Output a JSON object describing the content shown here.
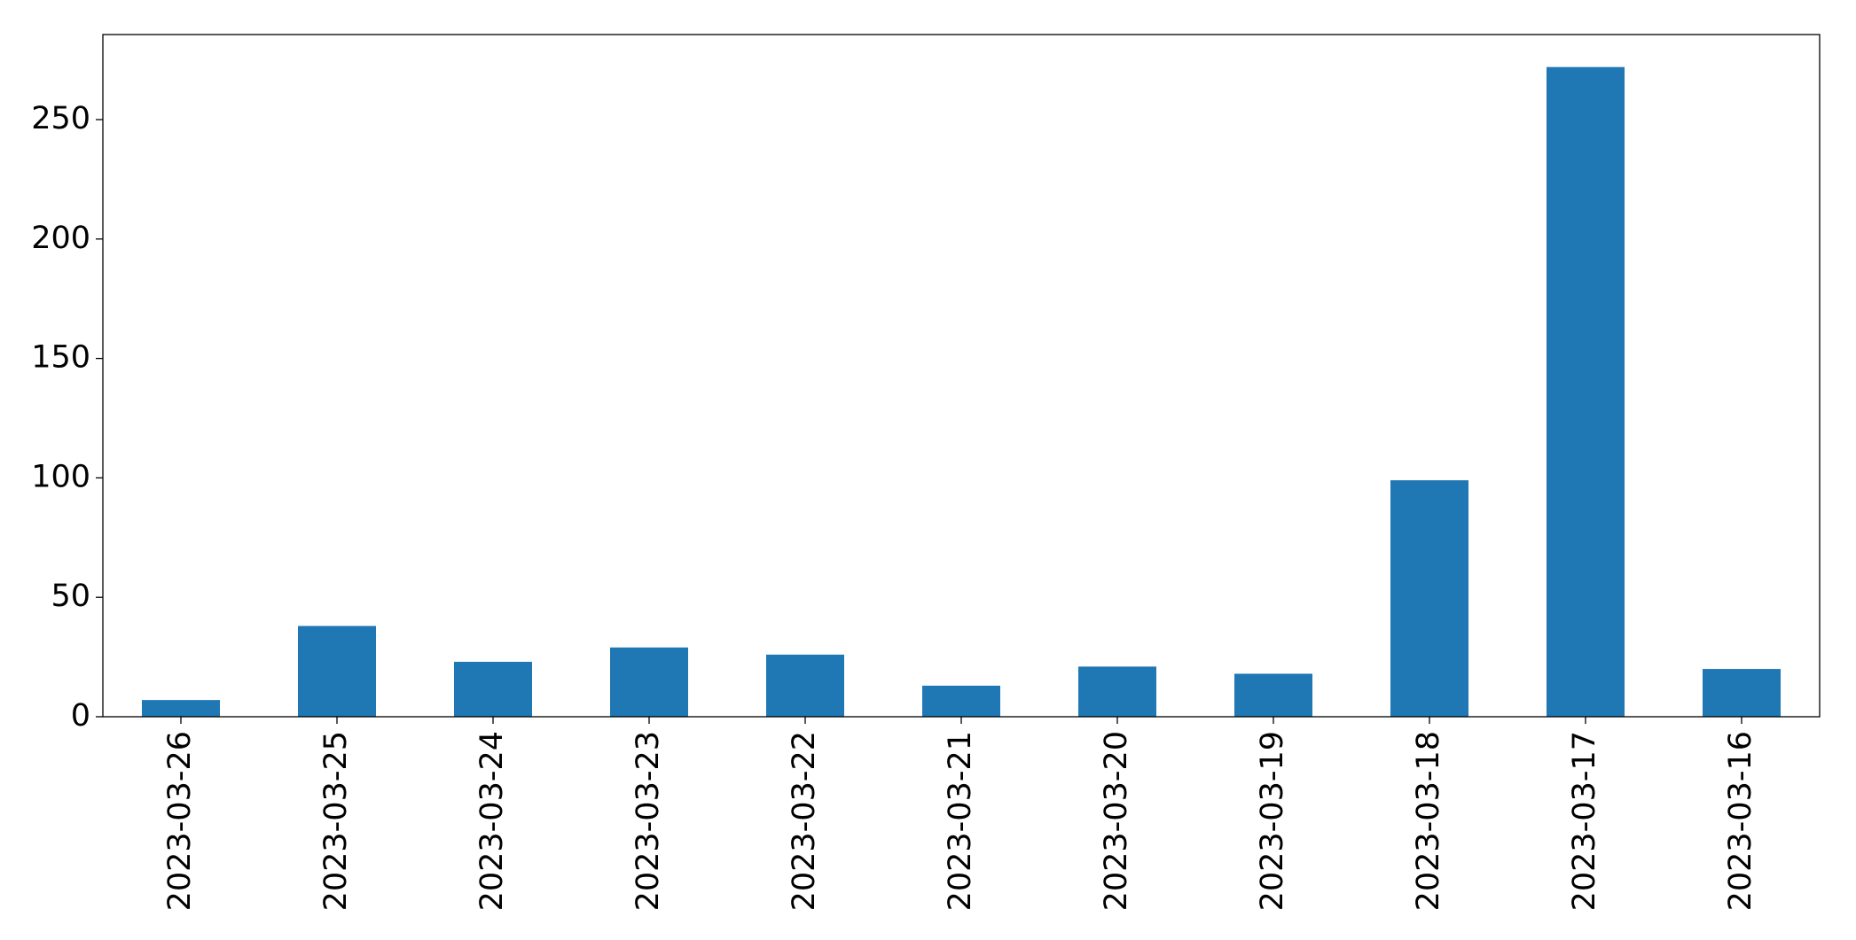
{
  "chart_data": {
    "type": "bar",
    "categories": [
      "2023-03-26",
      "2023-03-25",
      "2023-03-24",
      "2023-03-23",
      "2023-03-22",
      "2023-03-21",
      "2023-03-20",
      "2023-03-19",
      "2023-03-18",
      "2023-03-17",
      "2023-03-16"
    ],
    "values": [
      7,
      38,
      23,
      29,
      26,
      13,
      21,
      18,
      99,
      272,
      20
    ],
    "color": "#1f77b4",
    "ylim": [
      0,
      285.6
    ],
    "yticks": [
      0,
      50,
      100,
      150,
      200,
      250
    ],
    "grid": false
  }
}
